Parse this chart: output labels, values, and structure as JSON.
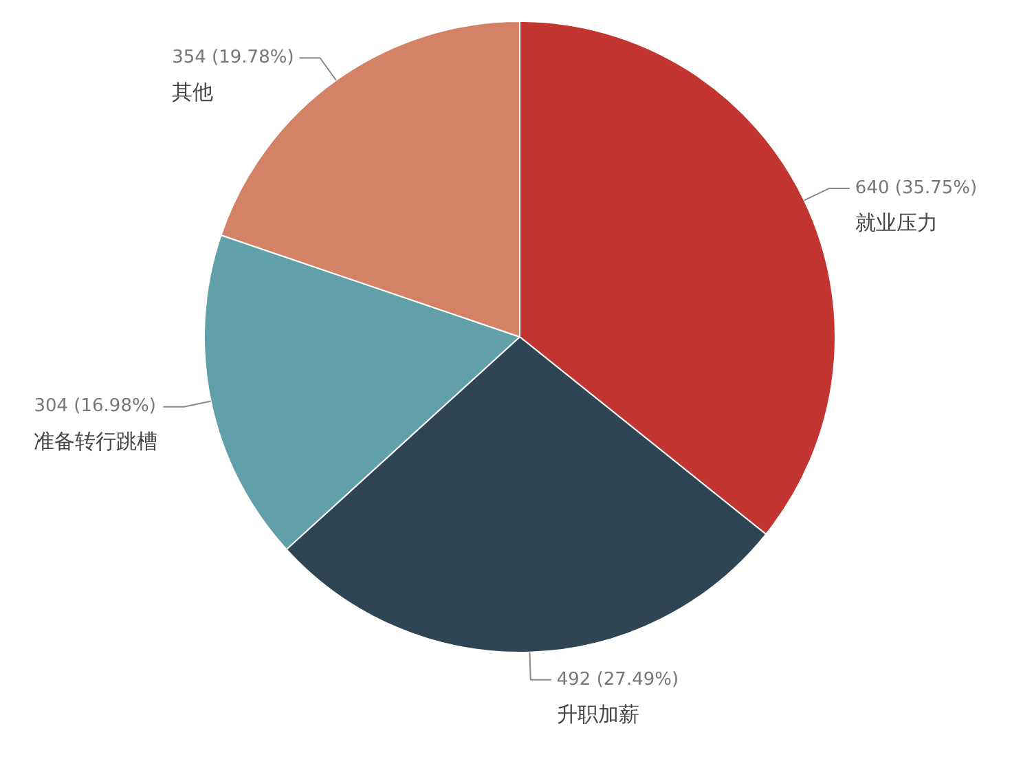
{
  "chart_data": {
    "type": "pie",
    "categories": [
      "就业压力",
      "升职加薪",
      "准备转行跳槽",
      "其他"
    ],
    "values": [
      640,
      492,
      304,
      354
    ],
    "colors": [
      "#c23531",
      "#2f4554",
      "#61a0a8",
      "#d48265"
    ],
    "value_labels": [
      "640 (35.75%)",
      "492 (27.49%)",
      "304 (16.98%)",
      "354 (19.78%)"
    ]
  }
}
